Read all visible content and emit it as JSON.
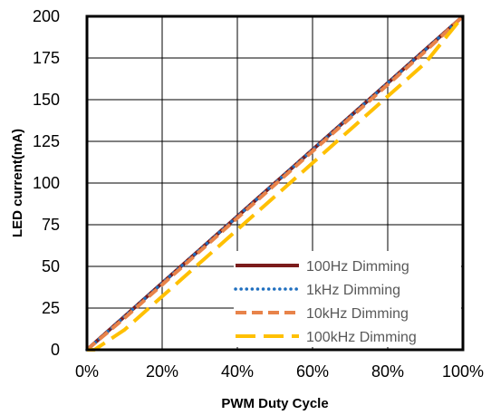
{
  "chart_data": {
    "type": "line",
    "xlabel": "PWM Duty Cycle",
    "ylabel": "LED current(mA)",
    "xlim": [
      0,
      100
    ],
    "ylim": [
      0,
      200
    ],
    "x_ticks": [
      "0%",
      "20%",
      "40%",
      "60%",
      "80%",
      "100%"
    ],
    "y_ticks": [
      "0",
      "25",
      "50",
      "75",
      "100",
      "125",
      "150",
      "175",
      "200"
    ],
    "grid": true,
    "legend_position": "bottom-right",
    "series": [
      {
        "name": "100Hz Dimming",
        "color": "#7B1C1C",
        "style": "solid",
        "points": [
          [
            0,
            0
          ],
          [
            10,
            20
          ],
          [
            20,
            40
          ],
          [
            30,
            60
          ],
          [
            40,
            80
          ],
          [
            50,
            100
          ],
          [
            60,
            120
          ],
          [
            70,
            140
          ],
          [
            80,
            160
          ],
          [
            90,
            180
          ],
          [
            100,
            200
          ]
        ]
      },
      {
        "name": "1kHz Dimming",
        "color": "#1F6FBF",
        "style": "dotted",
        "points": [
          [
            0,
            0
          ],
          [
            10,
            20
          ],
          [
            20,
            40
          ],
          [
            30,
            60
          ],
          [
            40,
            80
          ],
          [
            50,
            100
          ],
          [
            60,
            120
          ],
          [
            70,
            140
          ],
          [
            80,
            160
          ],
          [
            90,
            180
          ],
          [
            100,
            200
          ]
        ]
      },
      {
        "name": "10kHz Dimming",
        "color": "#E8834A",
        "style": "dashed",
        "points": [
          [
            0,
            0
          ],
          [
            10,
            19
          ],
          [
            20,
            39
          ],
          [
            30,
            59
          ],
          [
            40,
            79
          ],
          [
            50,
            99
          ],
          [
            60,
            119
          ],
          [
            70,
            139
          ],
          [
            80,
            159
          ],
          [
            90,
            179
          ],
          [
            100,
            200
          ]
        ]
      },
      {
        "name": "100kHz Dimming",
        "color": "#FFC000",
        "style": "longdash",
        "points": [
          [
            0,
            0
          ],
          [
            2,
            0
          ],
          [
            10,
            12
          ],
          [
            20,
            32
          ],
          [
            30,
            52
          ],
          [
            40,
            72
          ],
          [
            50,
            92
          ],
          [
            60,
            112
          ],
          [
            70,
            132
          ],
          [
            80,
            152
          ],
          [
            90,
            172
          ],
          [
            100,
            200
          ]
        ]
      }
    ]
  }
}
